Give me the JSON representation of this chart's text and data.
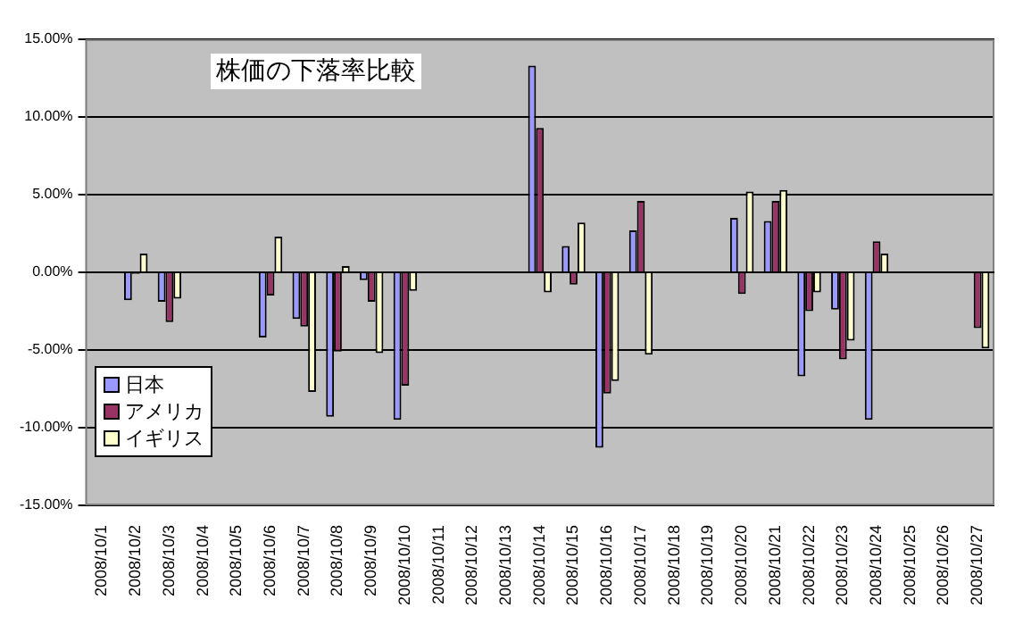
{
  "chart_data": {
    "type": "bar",
    "title": "株価の下落率比較",
    "categories": [
      "2008/10/1",
      "2008/10/2",
      "2008/10/3",
      "2008/10/4",
      "2008/10/5",
      "2008/10/6",
      "2008/10/7",
      "2008/10/8",
      "2008/10/9",
      "2008/10/10",
      "2008/10/11",
      "2008/10/12",
      "2008/10/13",
      "2008/10/14",
      "2008/10/15",
      "2008/10/16",
      "2008/10/17",
      "2008/10/18",
      "2008/10/19",
      "2008/10/20",
      "2008/10/21",
      "2008/10/22",
      "2008/10/23",
      "2008/10/24",
      "2008/10/25",
      "2008/10/26",
      "2008/10/27"
    ],
    "series": [
      {
        "name": "日本",
        "color": "#9999ff",
        "values": [
          null,
          -1.8,
          -1.9,
          null,
          null,
          -4.2,
          -3.0,
          -9.3,
          -0.5,
          -9.5,
          null,
          null,
          null,
          13.3,
          1.7,
          -11.3,
          2.7,
          null,
          null,
          3.5,
          3.3,
          -6.7,
          -2.4,
          -9.5,
          null,
          null,
          null
        ]
      },
      {
        "name": "アメリカ",
        "color": "#993366",
        "values": [
          null,
          -0.1,
          -3.2,
          null,
          null,
          -1.5,
          -3.5,
          -5.1,
          -1.9,
          -7.3,
          null,
          null,
          null,
          9.3,
          -0.8,
          -7.8,
          4.6,
          null,
          null,
          -1.4,
          4.6,
          -2.5,
          -5.6,
          2.0,
          null,
          null,
          -3.6
        ]
      },
      {
        "name": "イギリス",
        "color": "#ffffcc",
        "values": [
          null,
          1.2,
          -1.7,
          null,
          null,
          2.3,
          -7.7,
          0.4,
          -5.2,
          -1.2,
          null,
          null,
          null,
          -1.3,
          3.2,
          -7.0,
          -5.3,
          null,
          null,
          5.2,
          5.3,
          -1.3,
          -4.4,
          1.2,
          null,
          null,
          -4.9
        ]
      }
    ],
    "ylim": [
      -15,
      15
    ],
    "yticks": [
      {
        "value": -15,
        "label": "-15.00%"
      },
      {
        "value": -10,
        "label": "-10.00%"
      },
      {
        "value": -5,
        "label": "-5.00%"
      },
      {
        "value": 0,
        "label": "0.00%"
      },
      {
        "value": 5,
        "label": "5.00%"
      },
      {
        "value": 10,
        "label": "10.00%"
      },
      {
        "value": 15,
        "label": "15.00%"
      }
    ],
    "grid": "y",
    "legend": "bottom left"
  }
}
